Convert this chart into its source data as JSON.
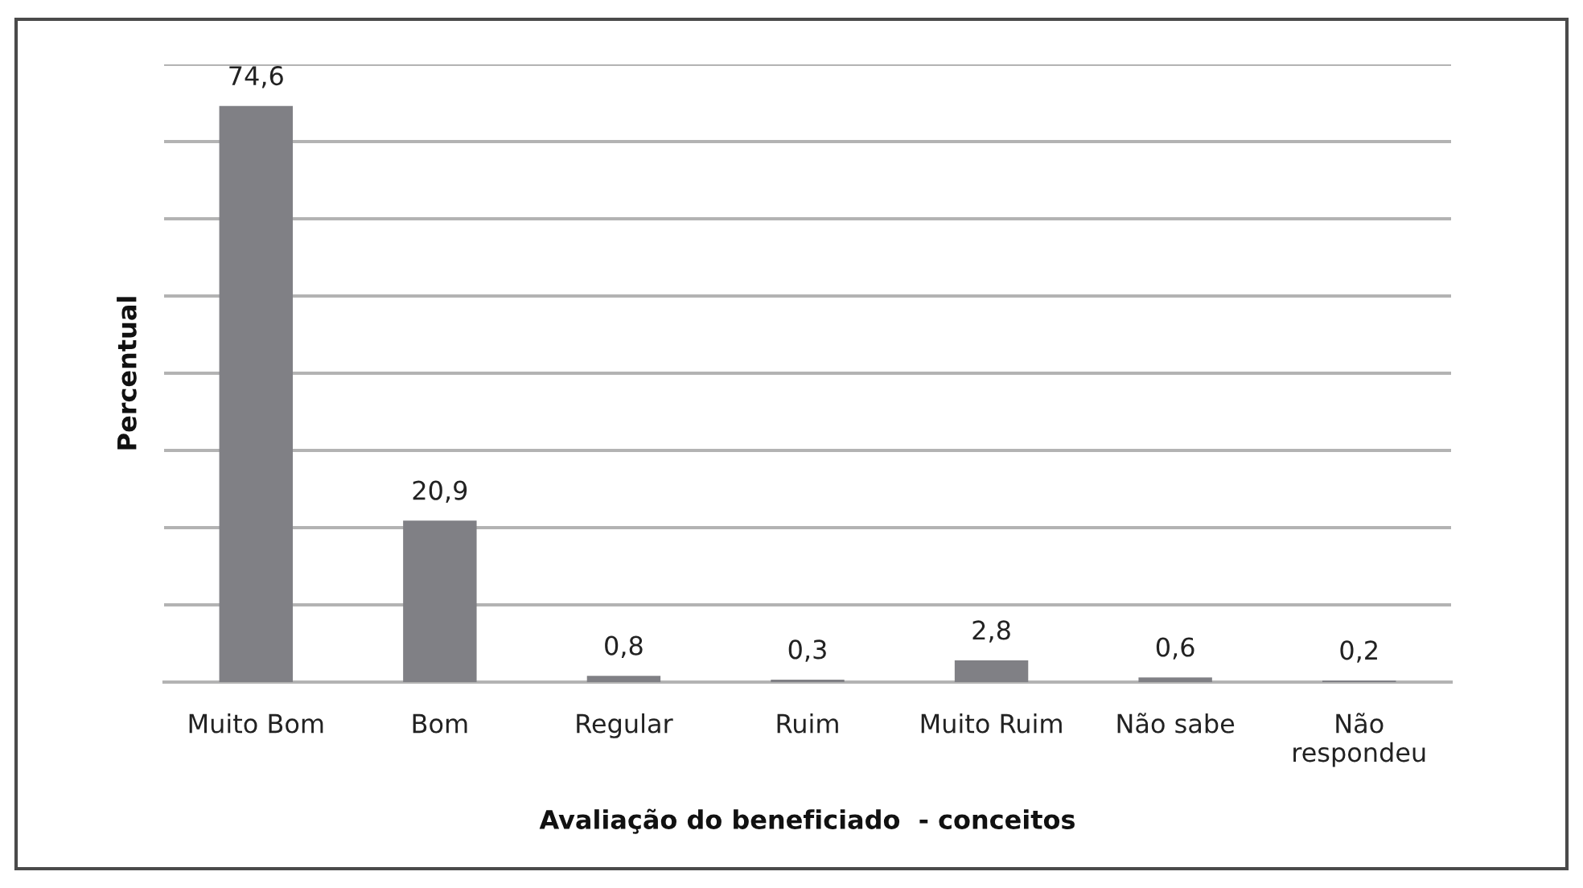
{
  "chart_data": {
    "type": "bar",
    "xlabel": "Avaliação do beneficiado  - conceitos",
    "ylabel": "Percentual",
    "categories": [
      "Muito Bom",
      "Bom",
      "Regular",
      "Ruim",
      "Muito Ruim",
      "Não sabe",
      "Não respondeu"
    ],
    "values": [
      74.6,
      20.9,
      0.8,
      0.3,
      2.8,
      0.6,
      0.2
    ],
    "value_labels": [
      "74,6",
      "20,9",
      "0,8",
      "0,3",
      "2,8",
      "0,6",
      "0,2"
    ],
    "color": "#808085",
    "ylim": [
      0,
      80
    ],
    "yticks": [
      {
        "value": 0,
        "label": null
      },
      {
        "value": 10,
        "label": null
      },
      {
        "value": 20,
        "label": null
      },
      {
        "value": 30,
        "label": null
      },
      {
        "value": 40,
        "label": null
      },
      {
        "value": 50,
        "label": null
      },
      {
        "value": 60,
        "label": null
      },
      {
        "value": 70,
        "label": null
      },
      {
        "value": 80,
        "label": null
      }
    ],
    "grid": "y",
    "tick_labels": "x"
  }
}
